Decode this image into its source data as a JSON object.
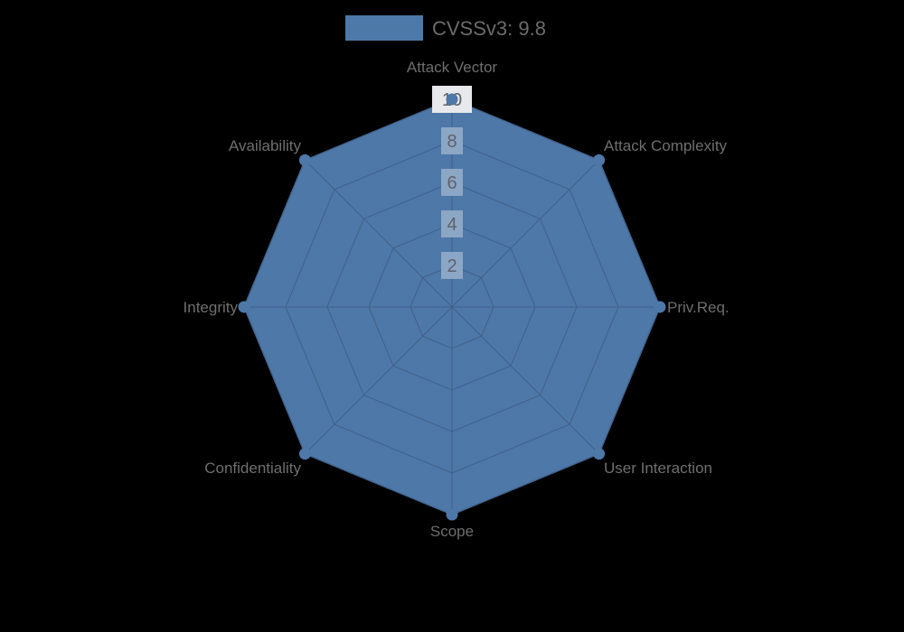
{
  "page": {
    "background_color": "#000000"
  },
  "legend": {
    "label": "CVSSv3: 9.8",
    "swatch_color": "#4d79a8",
    "text_color": "#6b6b6b"
  },
  "chart_data": {
    "type": "radar",
    "title": "",
    "categories": [
      "Attack Vector",
      "Attack Complexity",
      "Priv.Req.",
      "User Interaction",
      "Scope",
      "Confidentiality",
      "Integrity",
      "Availability"
    ],
    "series": [
      {
        "name": "CVSSv3: 9.8",
        "values": [
          10,
          10,
          10,
          10,
          10,
          10,
          10,
          10
        ]
      }
    ],
    "radial_ticks": [
      2,
      4,
      6,
      8,
      10
    ],
    "range": [
      0,
      10
    ],
    "grid": true,
    "legend_position": "top",
    "fill_color": "#4d78a8",
    "stroke_color": "#4d78a8",
    "marker_color": "#4d78a8",
    "grid_color": "#42618a",
    "tick_box_color": "#8ca6c5",
    "tick_box_color_max": "#e7e9ec",
    "tick_text_color": "#5e626b",
    "label_color": "#6e6e6e"
  }
}
